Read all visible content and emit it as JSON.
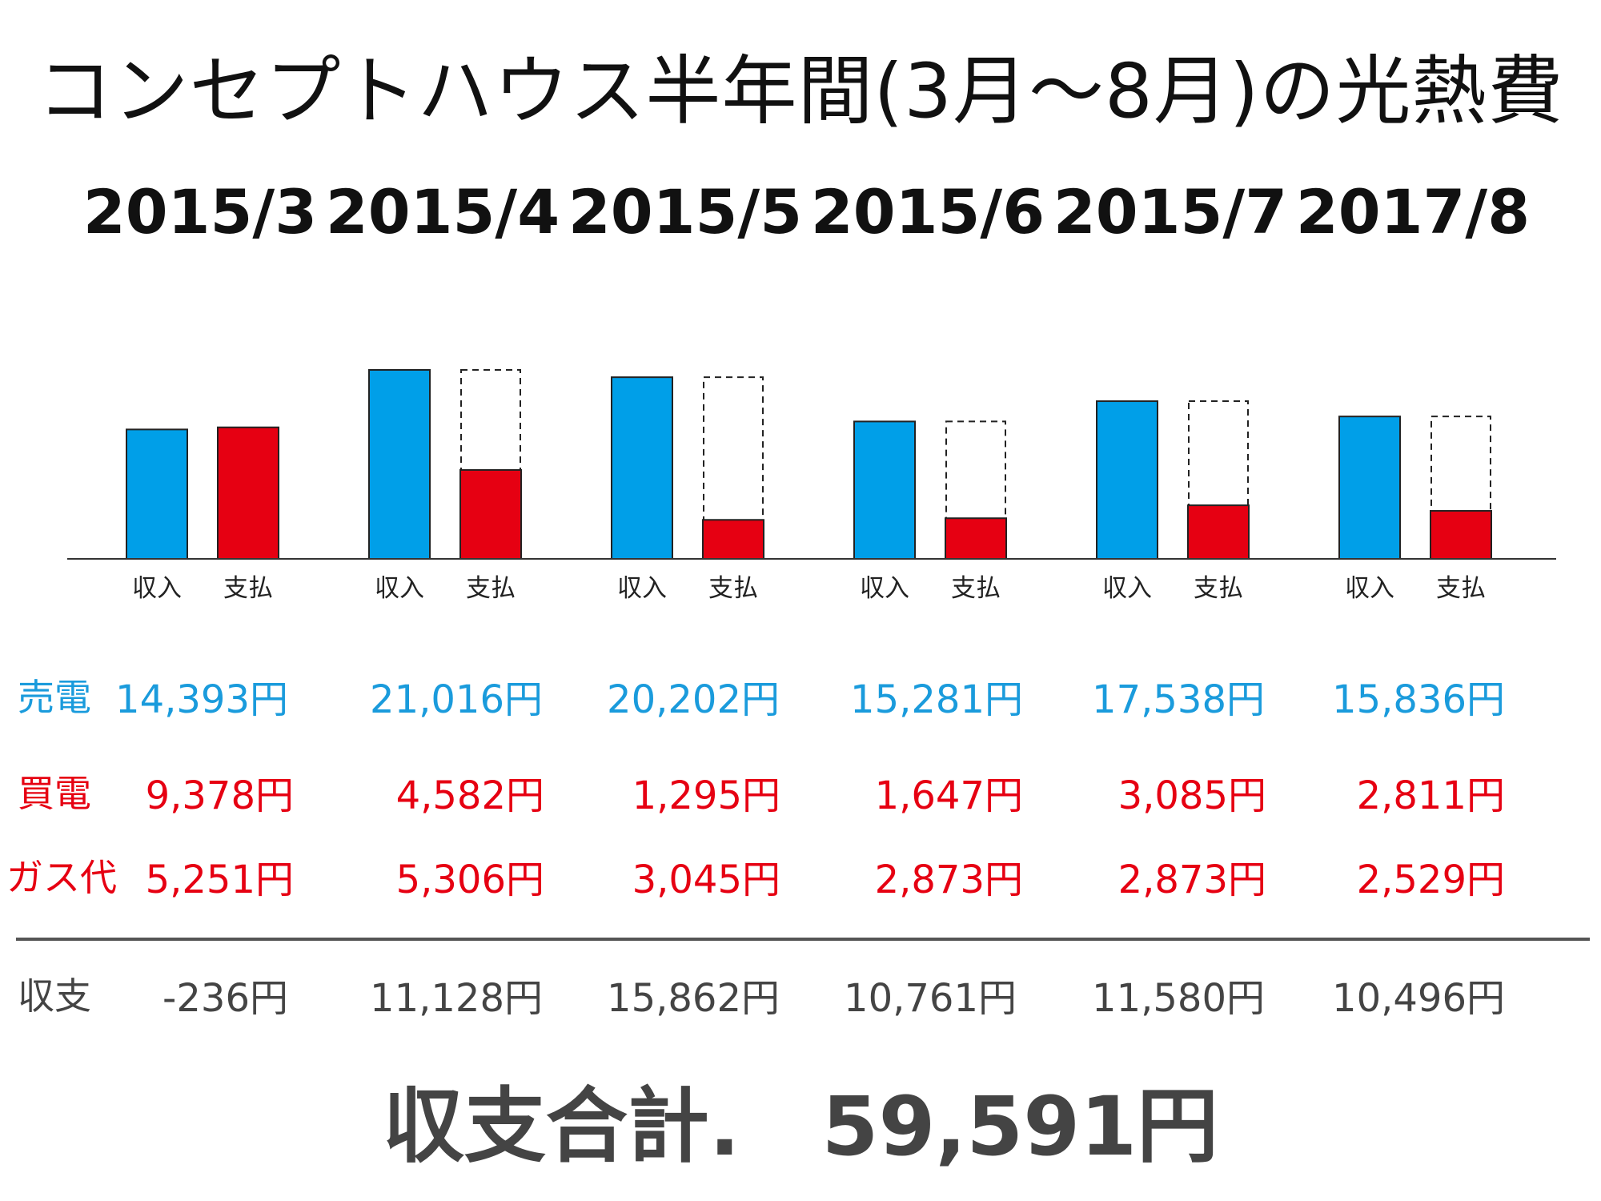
{
  "title": "コンセプトハウス半年間(3月〜8月)の光熱費",
  "months": [
    "2015/3",
    "2015/4",
    "2015/5",
    "2015/6",
    "2015/7",
    "2017/8"
  ],
  "bar_labels": {
    "income": "収入",
    "payment": "支払"
  },
  "rows": [
    {
      "key": "sell",
      "label": "売電",
      "color": "#1a9bdc",
      "values": [
        "14,393円",
        "21,016円",
        "20,202円",
        "15,281円",
        "17,538円",
        "15,836円"
      ]
    },
    {
      "key": "buy",
      "label": "買電",
      "color": "#e60012",
      "values": [
        "9,378円",
        "4,582円",
        "1,295円",
        "1,647円",
        "3,085円",
        "2,811円"
      ]
    },
    {
      "key": "gas",
      "label": "ガス代",
      "color": "#e60012",
      "values": [
        "5,251円",
        "5,306円",
        "3,045円",
        "2,873円",
        "2,873円",
        "2,529円"
      ]
    },
    {
      "key": "balance",
      "label": "収支",
      "color": "#444444",
      "values": [
        "-236円",
        "11,128円",
        "15,862円",
        "10,761円",
        "11,580円",
        "10,496円"
      ]
    }
  ],
  "total": "収支合計.　59,591円",
  "chart_data": {
    "type": "bar",
    "categories": [
      "2015/3",
      "2015/4",
      "2015/5",
      "2015/6",
      "2015/7",
      "2017/8"
    ],
    "series": [
      {
        "name": "収入",
        "values": [
          14393,
          21016,
          20202,
          15281,
          17538,
          15836
        ]
      },
      {
        "name": "支払",
        "values": [
          14629,
          9888,
          4340,
          4520,
          5958,
          5340
        ]
      }
    ],
    "ylim": [
      0,
      21016
    ],
    "colors": {
      "income": "#009fe8",
      "payment": "#e60012",
      "baseline": "#333333",
      "outline": "#222222"
    }
  }
}
